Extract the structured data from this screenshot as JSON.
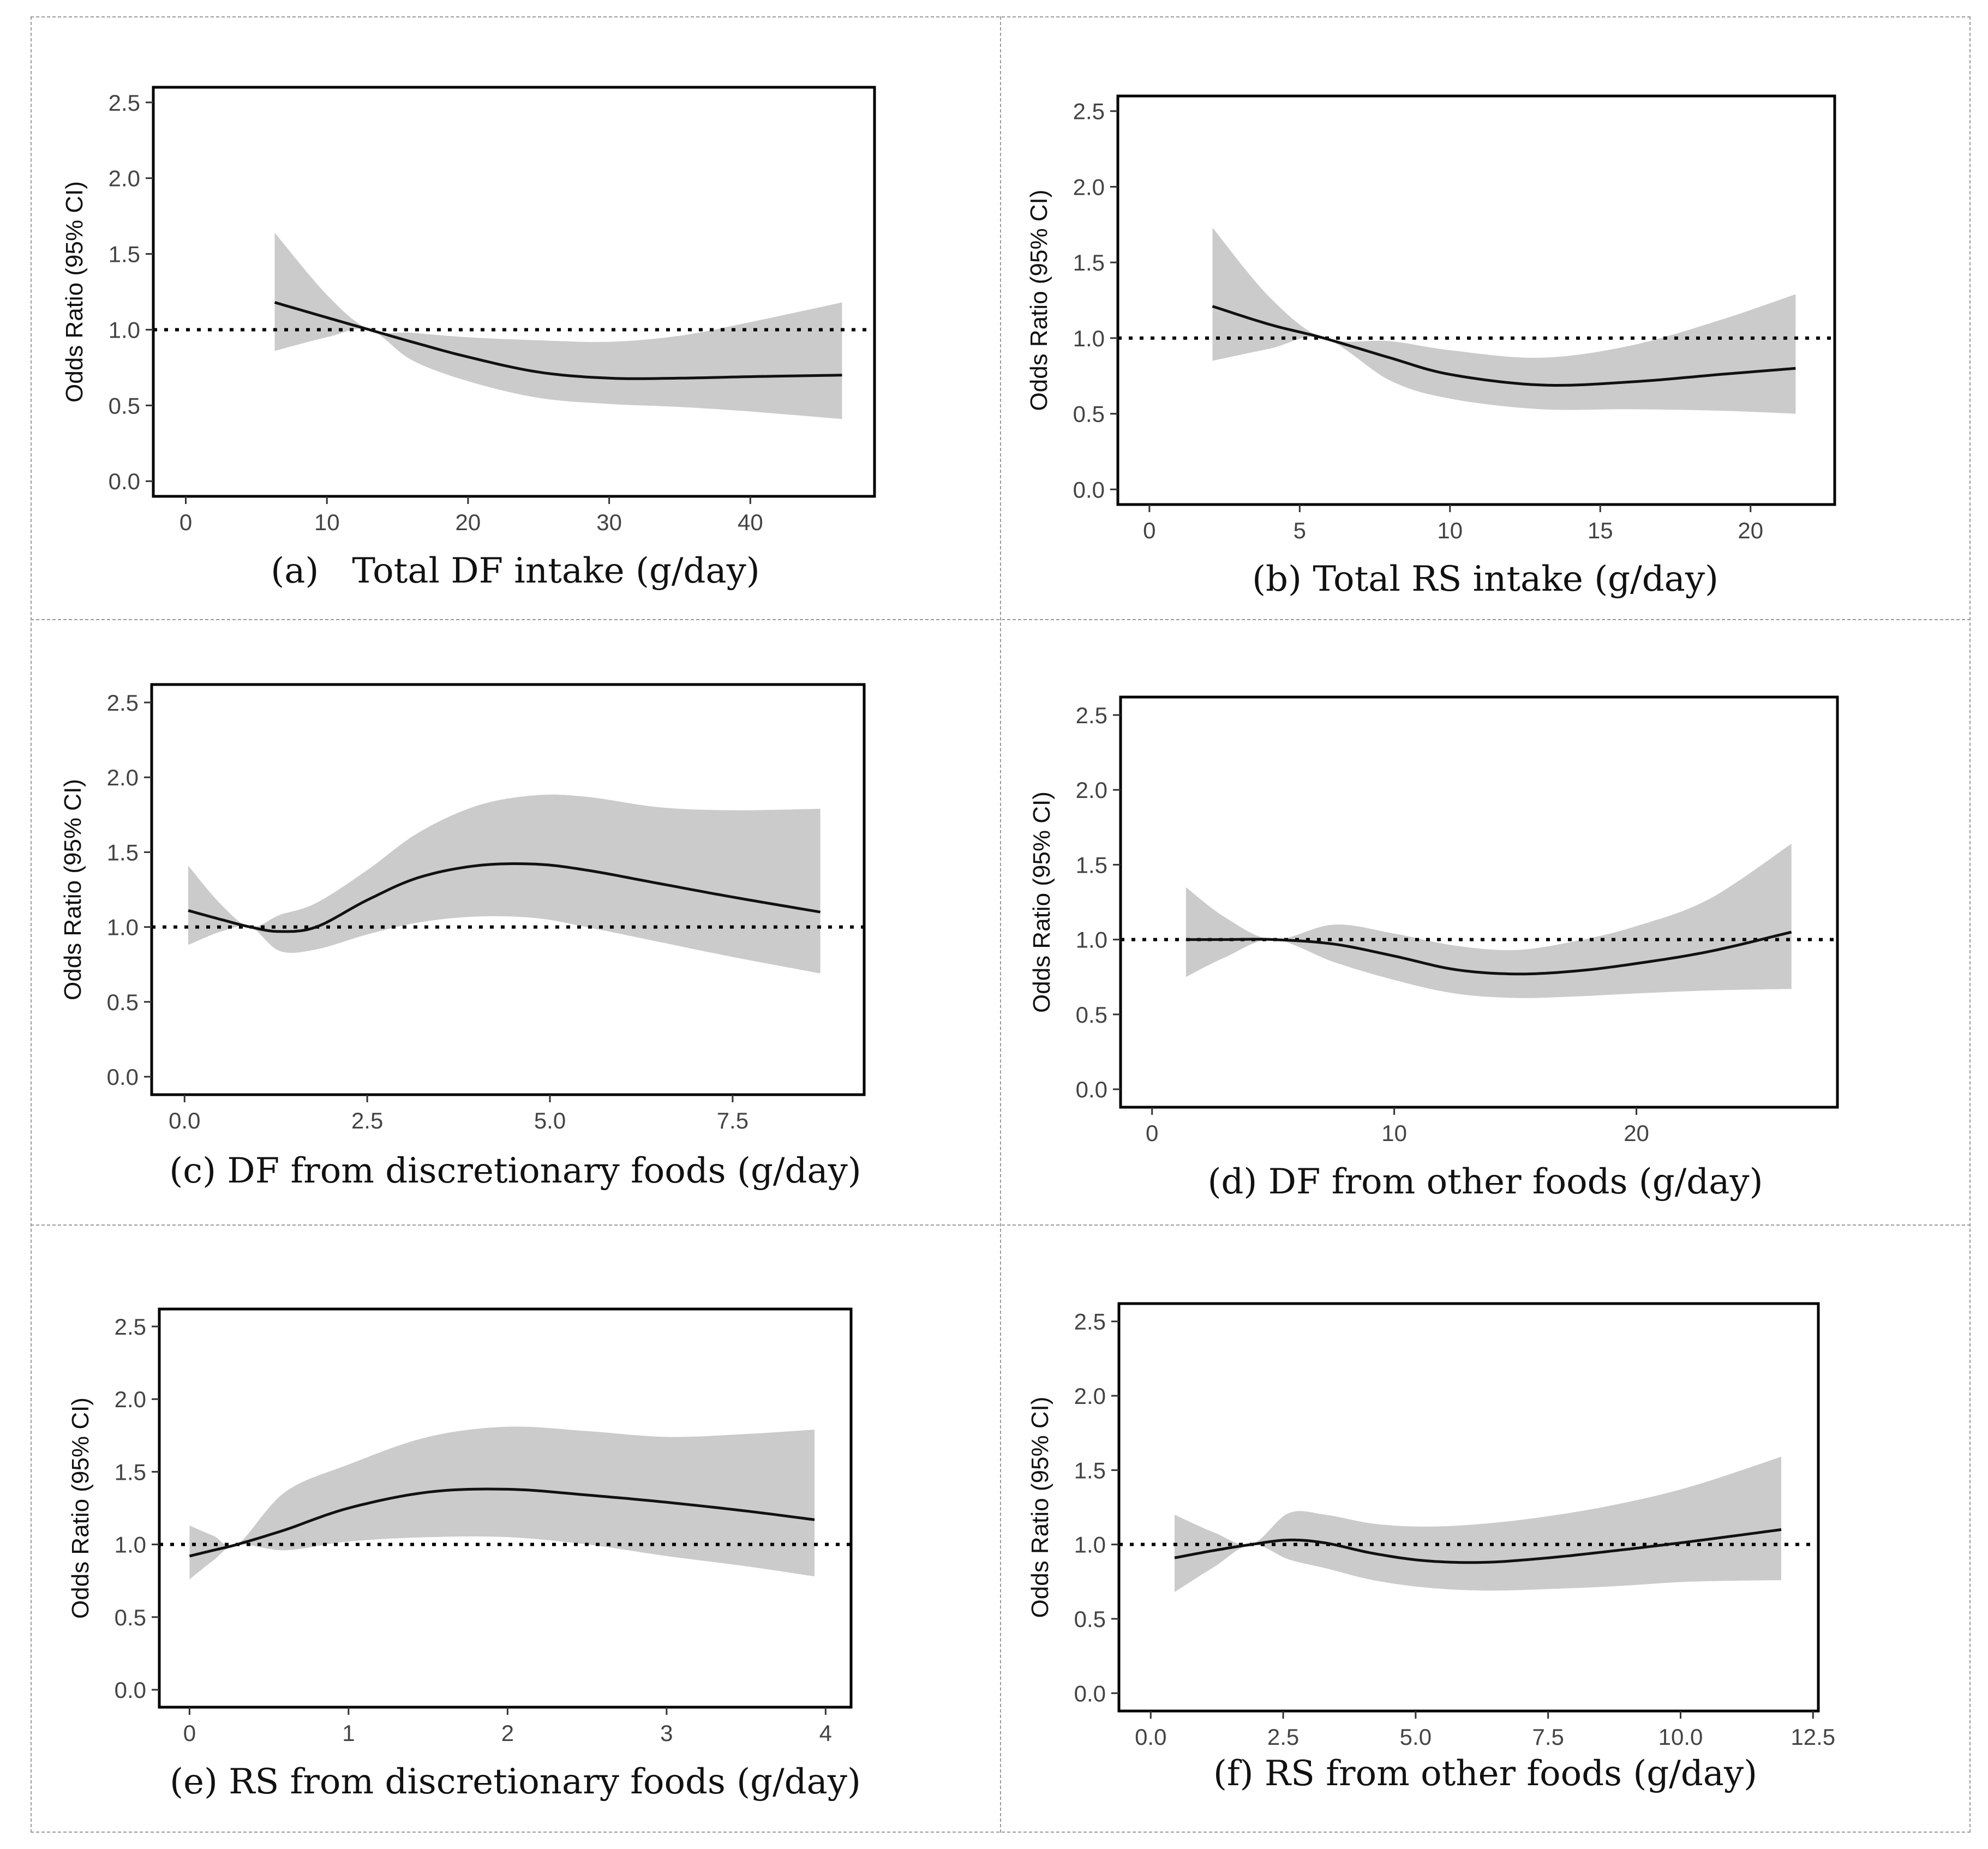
{
  "colors": {
    "line": "#111111",
    "band": "#cbcbcb",
    "reference": "#000000",
    "frame": "#000000",
    "tick_text": "#444444"
  },
  "chart_data": [
    {
      "id": "a",
      "type": "line",
      "caption": "(a)   Total DF intake (g/day)",
      "ylabel": "Odds Ratio (95% CI)",
      "xlabel": "",
      "xticks": [
        "0",
        "10",
        "20",
        "30",
        "40"
      ],
      "xtick_values": [
        0,
        10,
        20,
        30,
        40
      ],
      "yticks": [
        "0.0",
        "0.5",
        "1.0",
        "1.5",
        "2.0",
        "2.5"
      ],
      "ytick_values": [
        0,
        0.5,
        1,
        1.5,
        2,
        2.5
      ],
      "xlim": [
        -2.3,
        48.8
      ],
      "ylim": [
        -0.1,
        2.6
      ],
      "reference_line": 1.0,
      "grid": false,
      "series": [
        {
          "x": [
            6.3,
            10,
            13,
            16,
            20,
            25,
            30,
            35,
            40,
            46.5
          ],
          "y": [
            1.18,
            1.08,
            1.0,
            0.92,
            0.82,
            0.72,
            0.68,
            0.68,
            0.69,
            0.7
          ]
        }
      ],
      "ci_band": {
        "x": [
          6.3,
          10,
          13,
          16,
          20,
          25,
          30,
          35,
          40,
          46.5
        ],
        "lower": [
          0.86,
          0.95,
          1.0,
          0.8,
          0.66,
          0.55,
          0.51,
          0.49,
          0.46,
          0.41
        ],
        "upper": [
          1.64,
          1.23,
          1.0,
          0.98,
          0.95,
          0.93,
          0.92,
          0.96,
          1.05,
          1.18
        ]
      }
    },
    {
      "id": "b",
      "type": "line",
      "caption": "(b) Total RS intake (g/day)",
      "ylabel": "Odds Ratio (95% CI)",
      "xlabel": "",
      "xticks": [
        "0",
        "5",
        "10",
        "15",
        "20"
      ],
      "xtick_values": [
        0,
        5,
        10,
        15,
        20
      ],
      "yticks": [
        "0.0",
        "0.5",
        "1.0",
        "1.5",
        "2.0",
        "2.5"
      ],
      "ytick_values": [
        0,
        0.5,
        1,
        1.5,
        2,
        2.5
      ],
      "xlim": [
        -1.05,
        22.8
      ],
      "ylim": [
        -0.1,
        2.6
      ],
      "reference_line": 1.0,
      "grid": false,
      "series": [
        {
          "x": [
            2.1,
            4,
            5.8,
            8,
            10,
            13,
            16,
            19,
            21.5
          ],
          "y": [
            1.21,
            1.09,
            1.0,
            0.87,
            0.76,
            0.69,
            0.71,
            0.76,
            0.8
          ]
        }
      ],
      "ci_band": {
        "x": [
          2.1,
          4,
          5.8,
          8,
          10,
          13,
          16,
          19,
          21.5
        ],
        "lower": [
          0.85,
          0.93,
          1.0,
          0.72,
          0.6,
          0.53,
          0.53,
          0.52,
          0.5
        ],
        "upper": [
          1.73,
          1.27,
          1.0,
          0.98,
          0.92,
          0.87,
          0.95,
          1.12,
          1.29
        ]
      }
    },
    {
      "id": "c",
      "type": "line",
      "caption": "(c) DF from discretionary foods (g/day)",
      "ylabel": "Odds Ratio (95% CI)",
      "xlabel": "",
      "xticks": [
        "0.0",
        "2.5",
        "5.0",
        "7.5"
      ],
      "xtick_values": [
        0,
        2.5,
        5,
        7.5
      ],
      "yticks": [
        "0.0",
        "0.5",
        "1.0",
        "1.5",
        "2.0",
        "2.5"
      ],
      "ytick_values": [
        0,
        0.5,
        1,
        1.5,
        2,
        2.5
      ],
      "xlim": [
        -0.45,
        9.3
      ],
      "ylim": [
        -0.12,
        2.62
      ],
      "reference_line": 1.0,
      "grid": false,
      "series": [
        {
          "x": [
            0.05,
            0.5,
            0.9,
            1.3,
            1.8,
            2.5,
            3.2,
            4.0,
            4.8,
            5.5,
            6.5,
            7.5,
            8.7
          ],
          "y": [
            1.11,
            1.05,
            1.0,
            0.97,
            1.0,
            1.18,
            1.33,
            1.41,
            1.42,
            1.38,
            1.29,
            1.2,
            1.1
          ]
        }
      ],
      "ci_band": {
        "x": [
          0.05,
          0.5,
          0.9,
          1.3,
          1.8,
          2.5,
          3.2,
          4.0,
          4.8,
          5.5,
          6.5,
          7.5,
          8.7
        ],
        "lower": [
          0.88,
          0.97,
          1.0,
          0.84,
          0.85,
          0.95,
          1.03,
          1.07,
          1.06,
          1.0,
          0.9,
          0.8,
          0.69
        ],
        "upper": [
          1.41,
          1.15,
          1.0,
          1.08,
          1.16,
          1.38,
          1.63,
          1.81,
          1.88,
          1.87,
          1.8,
          1.78,
          1.79
        ]
      }
    },
    {
      "id": "d",
      "type": "line",
      "caption": "(d) DF from other foods (g/day)",
      "ylabel": "Odds Ratio (95% CI)",
      "xlabel": "",
      "xticks": [
        "0",
        "10",
        "20"
      ],
      "xtick_values": [
        0,
        10,
        20
      ],
      "yticks": [
        "0.0",
        "0.5",
        "1.0",
        "1.5",
        "2.0",
        "2.5"
      ],
      "ytick_values": [
        0,
        0.5,
        1,
        1.5,
        2,
        2.5
      ],
      "xlim": [
        -1.3,
        28.3
      ],
      "ylim": [
        -0.12,
        2.62
      ],
      "reference_line": 1.0,
      "grid": false,
      "series": [
        {
          "x": [
            1.4,
            3,
            5,
            7.5,
            10,
            12.5,
            15,
            17.5,
            20,
            23,
            26.4
          ],
          "y": [
            1.0,
            1.0,
            1.0,
            0.97,
            0.89,
            0.8,
            0.77,
            0.79,
            0.84,
            0.92,
            1.05
          ]
        }
      ],
      "ci_band": {
        "x": [
          1.4,
          3,
          5,
          7.5,
          10,
          12.5,
          15,
          17.5,
          20,
          23,
          26.4
        ],
        "lower": [
          0.75,
          0.88,
          1.0,
          0.85,
          0.73,
          0.64,
          0.61,
          0.62,
          0.64,
          0.66,
          0.67
        ],
        "upper": [
          1.35,
          1.15,
          1.0,
          1.1,
          1.04,
          0.96,
          0.93,
          0.99,
          1.09,
          1.27,
          1.64
        ]
      }
    },
    {
      "id": "e",
      "type": "line",
      "caption": "(e) RS from discretionary foods (g/day)",
      "ylabel": "Odds Ratio (95% CI)",
      "xlabel": "",
      "xticks": [
        "0",
        "1",
        "2",
        "3",
        "4"
      ],
      "xtick_values": [
        0,
        1,
        2,
        3,
        4
      ],
      "yticks": [
        "0.0",
        "0.5",
        "1.0",
        "1.5",
        "2.0",
        "2.5"
      ],
      "ytick_values": [
        0,
        0.5,
        1,
        1.5,
        2,
        2.5
      ],
      "xlim": [
        -0.19,
        4.16
      ],
      "ylim": [
        -0.12,
        2.62
      ],
      "reference_line": 1.0,
      "grid": false,
      "series": [
        {
          "x": [
            0.0,
            0.15,
            0.3,
            0.6,
            1.0,
            1.5,
            2.0,
            2.5,
            3.0,
            3.5,
            3.93
          ],
          "y": [
            0.92,
            0.96,
            1.0,
            1.1,
            1.25,
            1.36,
            1.38,
            1.34,
            1.29,
            1.23,
            1.17
          ]
        }
      ],
      "ci_band": {
        "x": [
          0.0,
          0.15,
          0.3,
          0.6,
          1.0,
          1.5,
          2.0,
          2.5,
          3.0,
          3.5,
          3.93
        ],
        "lower": [
          0.76,
          0.89,
          1.0,
          0.96,
          1.02,
          1.05,
          1.05,
          1.0,
          0.92,
          0.85,
          0.78
        ],
        "upper": [
          1.13,
          1.06,
          1.0,
          1.36,
          1.55,
          1.74,
          1.81,
          1.78,
          1.74,
          1.76,
          1.79
        ]
      }
    },
    {
      "id": "f",
      "type": "line",
      "caption": "(f) RS from other foods (g/day)",
      "ylabel": "Odds Ratio (95% CI)",
      "xlabel": "",
      "xticks": [
        "0.0",
        "2.5",
        "5.0",
        "7.5",
        "10.0",
        "12.5"
      ],
      "xtick_values": [
        0,
        2.5,
        5,
        7.5,
        10,
        12.5
      ],
      "yticks": [
        "0.0",
        "0.5",
        "1.0",
        "1.5",
        "2.0",
        "2.5"
      ],
      "ytick_values": [
        0,
        0.5,
        1,
        1.5,
        2,
        2.5
      ],
      "xlim": [
        -0.6,
        12.6
      ],
      "ylim": [
        -0.12,
        2.62
      ],
      "reference_line": 1.0,
      "grid": false,
      "series": [
        {
          "x": [
            0.45,
            1.2,
            1.9,
            2.6,
            3.3,
            4.2,
            5.2,
            6.3,
            7.5,
            8.8,
            10.2,
            11.9
          ],
          "y": [
            0.91,
            0.96,
            1.0,
            1.03,
            1.01,
            0.94,
            0.89,
            0.88,
            0.91,
            0.96,
            1.02,
            1.1
          ]
        }
      ],
      "ci_band": {
        "x": [
          0.45,
          1.2,
          1.9,
          2.6,
          3.3,
          4.2,
          5.2,
          6.3,
          7.5,
          8.8,
          10.2,
          11.9
        ],
        "lower": [
          0.68,
          0.85,
          1.0,
          0.9,
          0.84,
          0.76,
          0.71,
          0.69,
          0.7,
          0.72,
          0.75,
          0.76
        ],
        "upper": [
          1.2,
          1.08,
          1.0,
          1.21,
          1.2,
          1.14,
          1.12,
          1.14,
          1.19,
          1.27,
          1.39,
          1.59
        ]
      }
    }
  ]
}
